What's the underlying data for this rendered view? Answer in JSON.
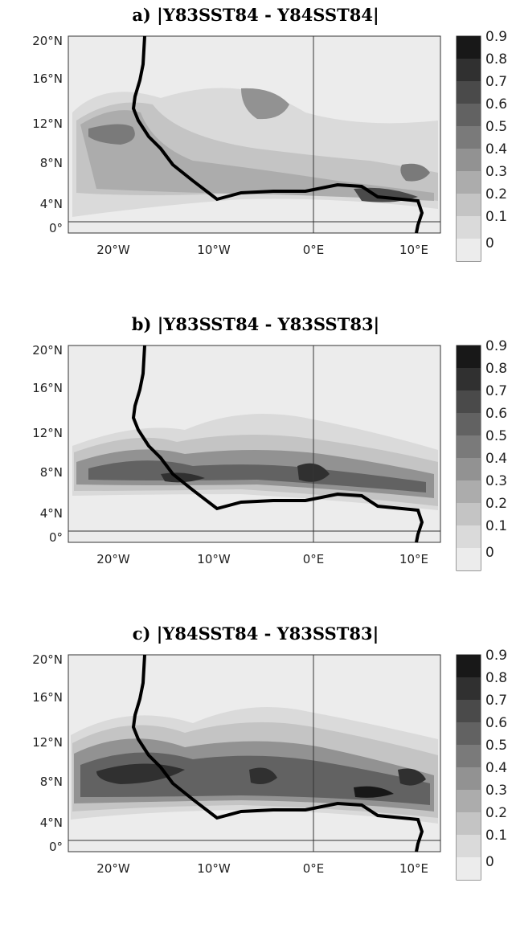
{
  "figure": {
    "colorbar": {
      "levels": [
        "0.9",
        "0.8",
        "0.7",
        "0.6",
        "0.5",
        "0.4",
        "0.3",
        "0.2",
        "0.1",
        "0"
      ],
      "colors": [
        "#181818",
        "#303030",
        "#4a4a4a",
        "#626262",
        "#7a7a7a",
        "#929292",
        "#acacac",
        "#c4c4c4",
        "#dadada",
        "#ececec"
      ]
    },
    "lat_ticks": [
      "20°N",
      "16°N",
      "12°N",
      "8°N",
      "4°N",
      "0°"
    ],
    "lon_ticks": [
      "20°W",
      "10°W",
      "0°E",
      "10°E"
    ],
    "panels": [
      {
        "title": "a) |Y83SST84 - Y84SST84|"
      },
      {
        "title": "b) |Y83SST84 - Y83SST83|"
      },
      {
        "title": "c) |Y84SST84 - Y83SST83|"
      }
    ]
  }
}
